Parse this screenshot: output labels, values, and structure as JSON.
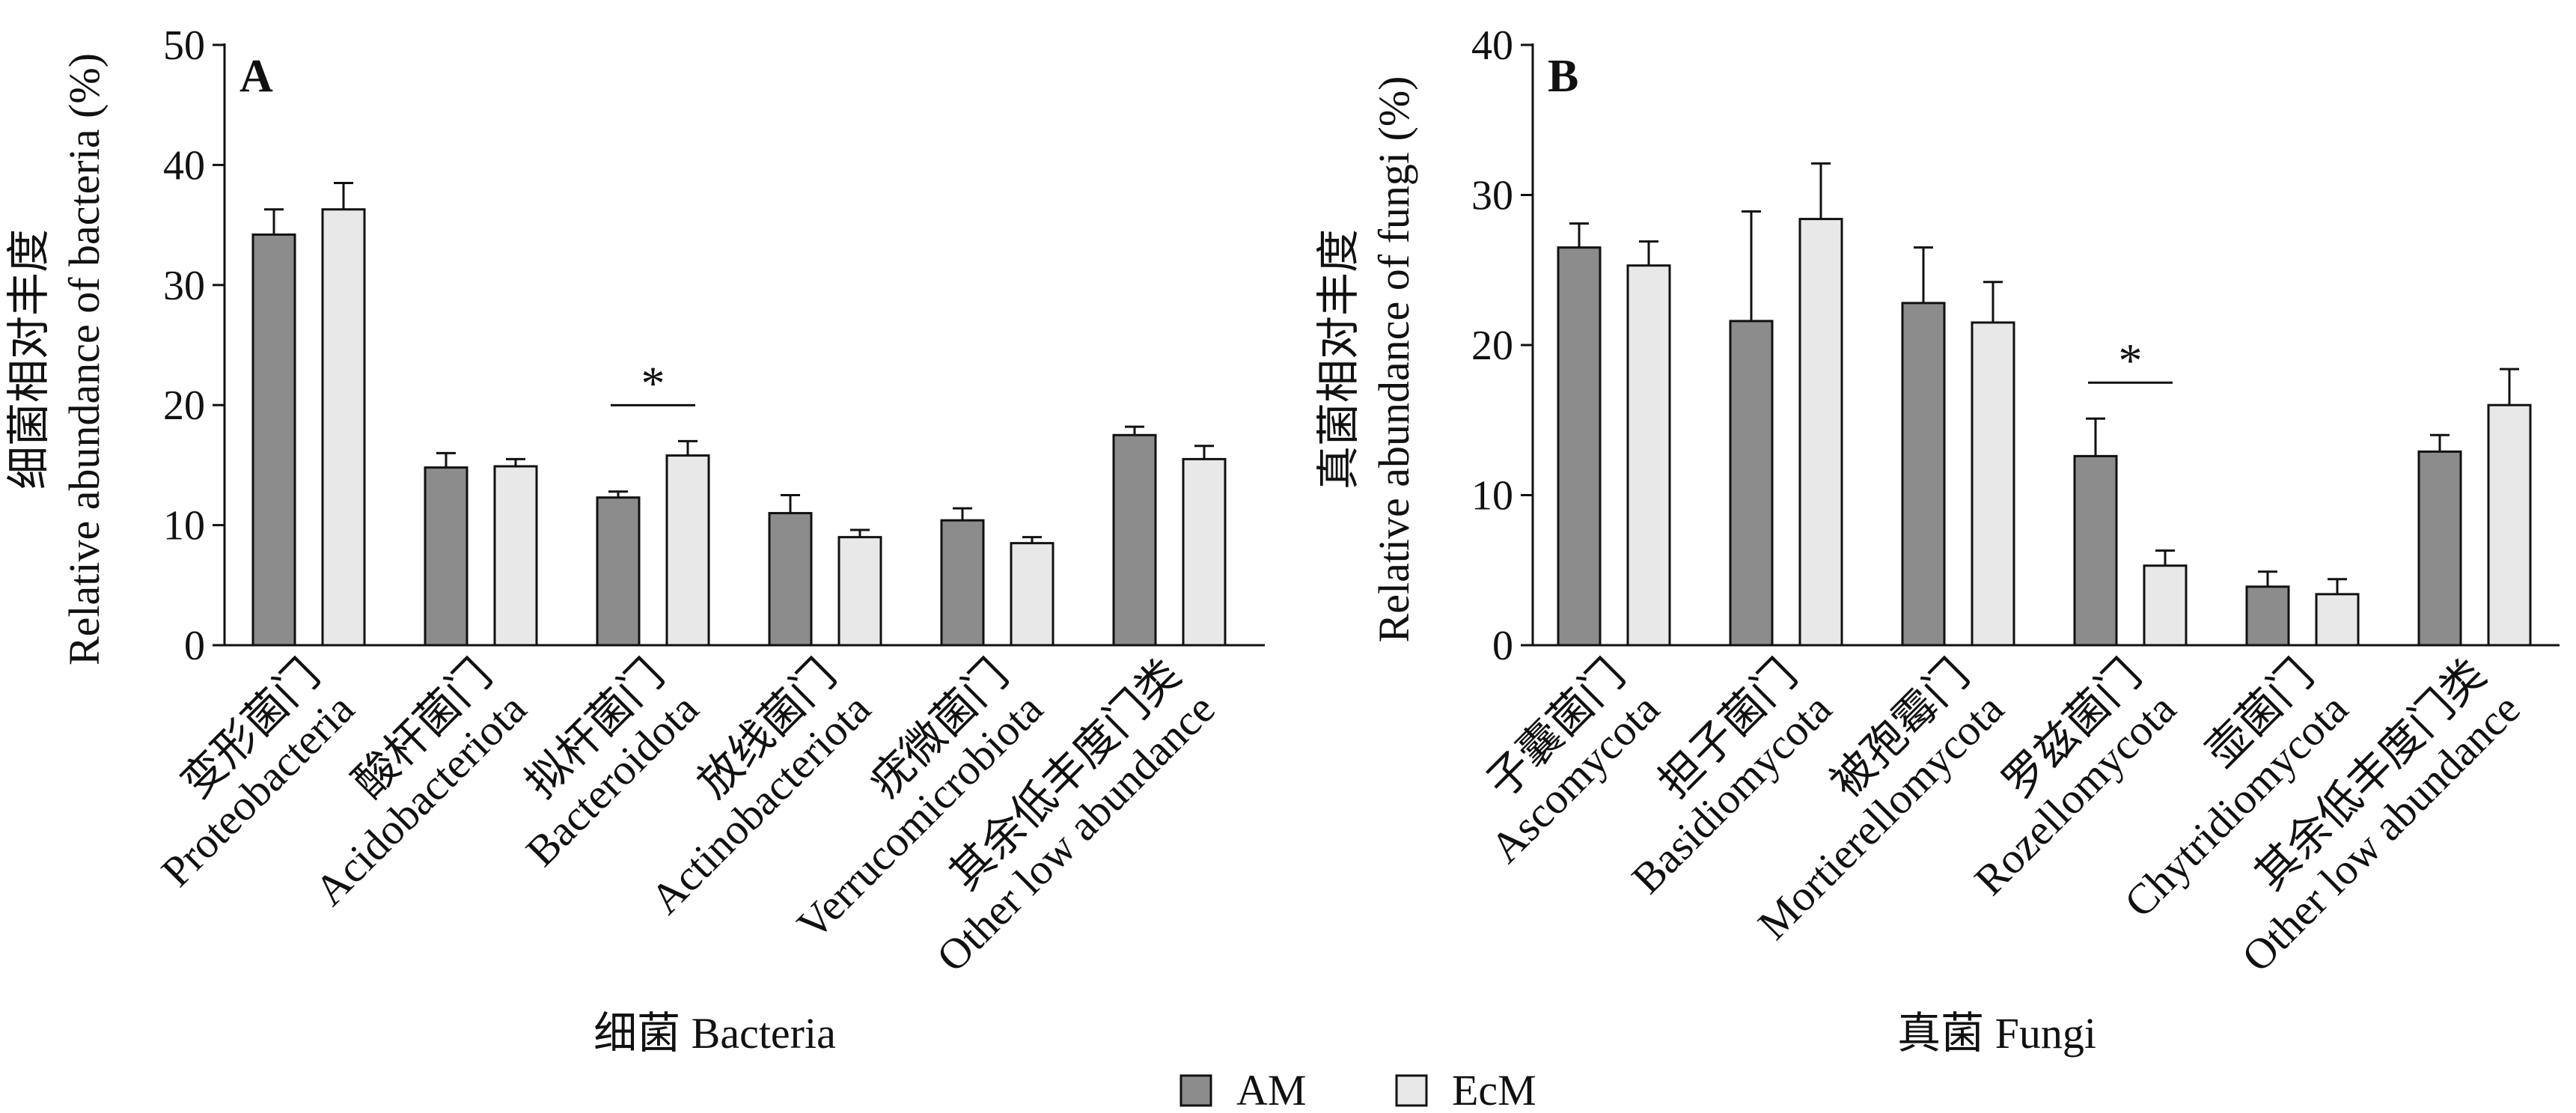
{
  "legend": [
    {
      "name": "AM",
      "color": "#8c8c8c"
    },
    {
      "name": "EcM",
      "color": "#e8e8e8"
    }
  ],
  "chart_data": [
    {
      "type": "bar",
      "panel": "A",
      "xlabel": "细菌 Bacteria",
      "ylabel_cn": "细菌相对丰度",
      "ylabel_en": "Relative abundance of bacteria (%)",
      "ylim": [
        0,
        50
      ],
      "yticks": [
        0,
        10,
        20,
        30,
        40,
        50
      ],
      "categories": [
        {
          "cn": "变形菌门",
          "en": "Proteobacteria"
        },
        {
          "cn": "酸杆菌门",
          "en": "Acidobacteriota"
        },
        {
          "cn": "拟杆菌门",
          "en": "Bacteroidota"
        },
        {
          "cn": "放线菌门",
          "en": "Actinobacteriota"
        },
        {
          "cn": "疣微菌门",
          "en": "Verrucomicrobiota"
        },
        {
          "cn": "其余低丰度门类",
          "en": "Other low abundance"
        }
      ],
      "series": [
        {
          "name": "AM",
          "values": [
            34.2,
            14.8,
            12.3,
            11.0,
            10.4,
            17.5
          ],
          "errors": [
            2.1,
            1.2,
            0.5,
            1.5,
            1.0,
            0.7
          ]
        },
        {
          "name": "EcM",
          "values": [
            36.3,
            14.9,
            15.8,
            9.0,
            8.5,
            15.5
          ],
          "errors": [
            2.2,
            0.6,
            1.2,
            0.6,
            0.5,
            1.1
          ]
        }
      ],
      "significance": [
        {
          "category_index": 2,
          "label": "*"
        }
      ]
    },
    {
      "type": "bar",
      "panel": "B",
      "xlabel": "真菌 Fungi",
      "ylabel_cn": "真菌相对丰度",
      "ylabel_en": "Relative abundance of fungi (%)",
      "ylim": [
        0,
        40
      ],
      "yticks": [
        0,
        10,
        20,
        30,
        40
      ],
      "categories": [
        {
          "cn": "子囊菌门",
          "en": "Ascomycota"
        },
        {
          "cn": "担子菌门",
          "en": "Basidiomycota"
        },
        {
          "cn": "被孢霉门",
          "en": "Mortierellomycota"
        },
        {
          "cn": "罗兹菌门",
          "en": "Rozellomycota"
        },
        {
          "cn": "壶菌门",
          "en": "Chytridiomycota"
        },
        {
          "cn": "其余低丰度门类",
          "en": "Other low abundance"
        }
      ],
      "series": [
        {
          "name": "AM",
          "values": [
            26.5,
            21.6,
            22.8,
            12.6,
            3.9,
            12.9
          ],
          "errors": [
            1.6,
            7.3,
            3.7,
            2.5,
            1.0,
            1.1
          ]
        },
        {
          "name": "EcM",
          "values": [
            25.3,
            28.4,
            21.5,
            5.3,
            3.4,
            16.0
          ],
          "errors": [
            1.6,
            3.7,
            2.7,
            1.0,
            1.0,
            2.4
          ]
        }
      ],
      "significance": [
        {
          "category_index": 3,
          "label": "*"
        }
      ]
    }
  ]
}
